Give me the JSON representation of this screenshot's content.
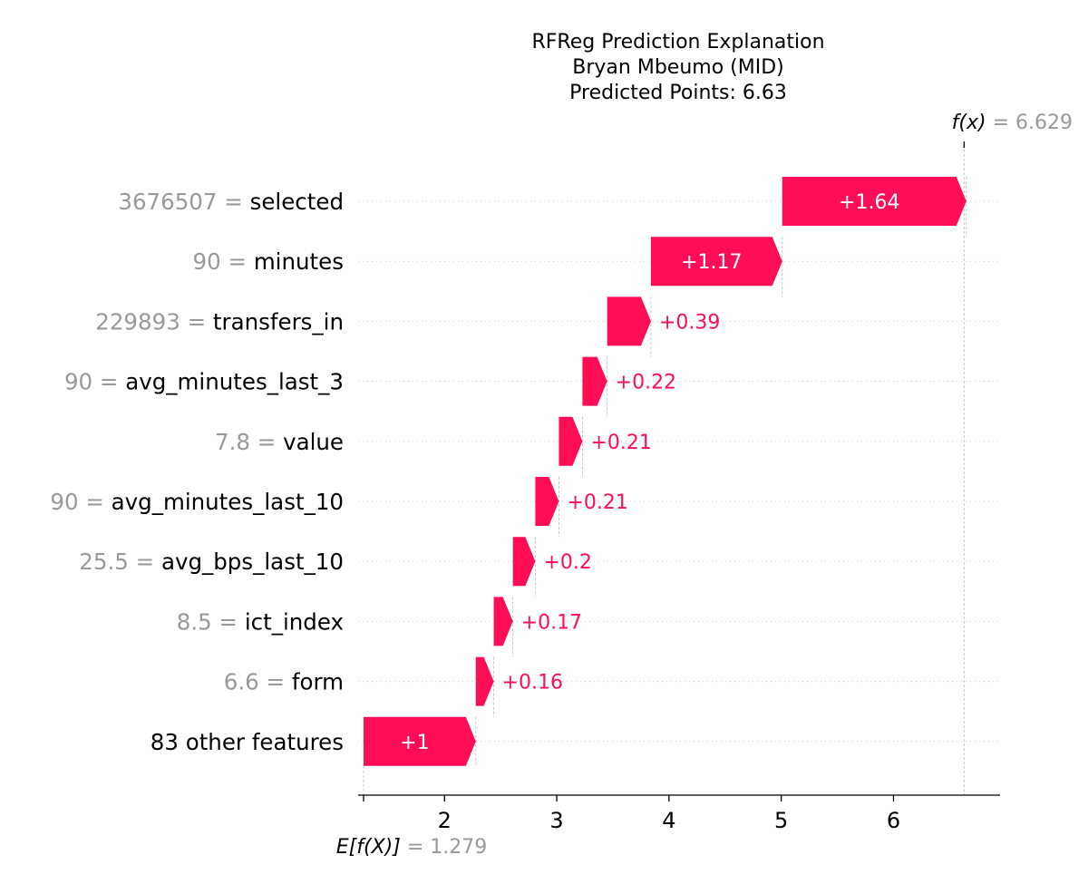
{
  "chart_data": {
    "type": "waterfall",
    "title_lines": [
      "RFReg Prediction Explanation",
      "Bryan Mbeumo (MID)",
      "Predicted Points: 6.63"
    ],
    "base_value": 1.279,
    "base_value_label": "1.279",
    "base_label": "E[f(X)]",
    "output_value": 6.629,
    "output_value_label": "6.629",
    "output_label": "f(x)",
    "features": [
      {
        "value": "3676507",
        "name": "selected",
        "contribution": 1.64,
        "label": "+1.64"
      },
      {
        "value": "90",
        "name": "minutes",
        "contribution": 1.17,
        "label": "+1.17"
      },
      {
        "value": "229893",
        "name": "transfers_in",
        "contribution": 0.39,
        "label": "+0.39"
      },
      {
        "value": "90",
        "name": "avg_minutes_last_3",
        "contribution": 0.22,
        "label": "+0.22"
      },
      {
        "value": "7.8",
        "name": "value",
        "contribution": 0.21,
        "label": "+0.21"
      },
      {
        "value": "90",
        "name": "avg_minutes_last_10",
        "contribution": 0.21,
        "label": "+0.21"
      },
      {
        "value": "25.5",
        "name": "avg_bps_last_10",
        "contribution": 0.2,
        "label": "+0.2"
      },
      {
        "value": "8.5",
        "name": "ict_index",
        "contribution": 0.17,
        "label": "+0.17"
      },
      {
        "value": "6.6",
        "name": "form",
        "contribution": 0.16,
        "label": "+0.16"
      },
      {
        "value": "",
        "name": "83 other features",
        "contribution": 1.0,
        "label": "+1"
      }
    ],
    "x_ticks": [
      2,
      3,
      4,
      5,
      6
    ],
    "xlim": [
      1.279,
      6.93
    ],
    "grid": "dotted horizontal",
    "colors": {
      "positive": "#ff0d57",
      "muted_text": "#999999",
      "axis": "#000000"
    }
  }
}
